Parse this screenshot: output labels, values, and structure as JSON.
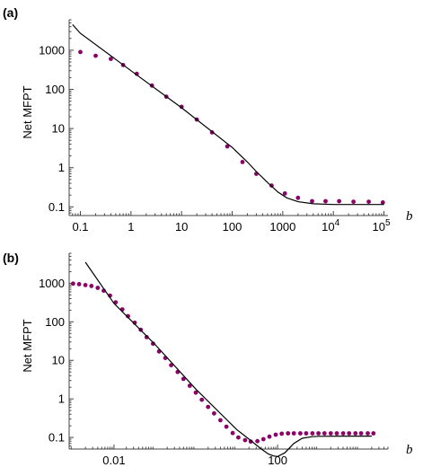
{
  "colors": {
    "points": "#8b0066",
    "curve": "#000000",
    "axis": "#444444"
  },
  "chart_data": [
    {
      "type": "scatter",
      "panel_label": "(a)",
      "title": "",
      "xlabel": "b",
      "ylabel": "Net MFPT",
      "xscale": "log",
      "yscale": "log",
      "xlim": [
        0.06,
        120000
      ],
      "ylim": [
        0.06,
        6000
      ],
      "xticks": [
        {
          "value": 0.1,
          "label": "0.1"
        },
        {
          "value": 1,
          "label": "1"
        },
        {
          "value": 10,
          "label": "10"
        },
        {
          "value": 100,
          "label": "100"
        },
        {
          "value": 1000,
          "label": "1000"
        }
      ],
      "xticks_pow": [
        {
          "value": 10000,
          "base": "10",
          "exp": "4"
        },
        {
          "value": 100000,
          "base": "10",
          "exp": "5"
        }
      ],
      "yticks": [
        {
          "value": 0.1,
          "label": "0.1"
        },
        {
          "value": 1,
          "label": "1"
        },
        {
          "value": 10,
          "label": "10"
        },
        {
          "value": 100,
          "label": "100"
        },
        {
          "value": 1000,
          "label": "1000"
        }
      ],
      "series": [
        {
          "kind": "points",
          "x": [
            0.1,
            0.2,
            0.4,
            0.7,
            1.3,
            2.6,
            5,
            10,
            20,
            40,
            80,
            160,
            300,
            600,
            1100,
            2000,
            3800,
            7000,
            13000,
            25000,
            50000,
            95000
          ],
          "y": [
            900,
            720,
            600,
            420,
            250,
            125,
            65,
            36,
            17,
            8,
            3.5,
            1.4,
            0.7,
            0.35,
            0.22,
            0.17,
            0.14,
            0.14,
            0.14,
            0.135,
            0.135,
            0.13
          ]
        },
        {
          "kind": "line",
          "x": [
            0.07,
            0.1,
            1,
            10,
            100,
            200,
            300,
            500,
            800,
            1200,
            2000,
            4000,
            10000,
            100000
          ],
          "y": [
            4500,
            2700,
            300,
            34,
            3.3,
            1.4,
            0.8,
            0.42,
            0.24,
            0.17,
            0.135,
            0.12,
            0.115,
            0.115
          ]
        }
      ]
    },
    {
      "type": "scatter",
      "panel_label": "(b)",
      "title": "",
      "xlabel": "b",
      "ylabel": "Net MFPT",
      "xscale": "log",
      "yscale": "log",
      "xlim": [
        0.0008,
        50000
      ],
      "ylim": [
        0.05,
        6000
      ],
      "xticks": [
        {
          "value": 0.01,
          "label": "0.01"
        },
        {
          "value": 100,
          "label": "100"
        }
      ],
      "xticks_pow": [],
      "yticks": [
        {
          "value": 0.1,
          "label": "0.1"
        },
        {
          "value": 1,
          "label": "1"
        },
        {
          "value": 10,
          "label": "10"
        },
        {
          "value": 100,
          "label": "100"
        },
        {
          "value": 1000,
          "label": "1000"
        }
      ],
      "series": [
        {
          "kind": "points",
          "x": [
            0.001,
            0.0014,
            0.002,
            0.0028,
            0.004,
            0.0056,
            0.008,
            0.011,
            0.016,
            0.022,
            0.032,
            0.045,
            0.063,
            0.09,
            0.126,
            0.18,
            0.25,
            0.36,
            0.5,
            0.71,
            1,
            1.4,
            2,
            2.8,
            4,
            5.6,
            8,
            11,
            16,
            22,
            32,
            45,
            63,
            90,
            126,
            180,
            250,
            360,
            500,
            710,
            1000,
            1400,
            2000,
            2800,
            4000,
            5600,
            8000,
            11000,
            16000,
            22000
          ],
          "y": [
            980,
            950,
            900,
            850,
            760,
            640,
            480,
            320,
            210,
            140,
            95,
            62,
            40,
            27,
            17,
            11.5,
            7.5,
            5,
            3.3,
            2.2,
            1.45,
            0.95,
            0.62,
            0.42,
            0.28,
            0.19,
            0.13,
            0.1,
            0.085,
            0.078,
            0.08,
            0.09,
            0.105,
            0.118,
            0.125,
            0.128,
            0.128,
            0.128,
            0.128,
            0.128,
            0.128,
            0.128,
            0.128,
            0.128,
            0.128,
            0.128,
            0.128,
            0.128,
            0.128,
            0.128
          ]
        },
        {
          "kind": "line",
          "x": [
            0.002,
            0.01,
            0.1,
            1,
            10,
            20,
            40,
            60,
            80,
            100,
            150,
            250,
            400,
            700,
            1000,
            5000,
            20000
          ],
          "y": [
            3500,
            300,
            26,
            1.8,
            0.16,
            0.09,
            0.05,
            0.037,
            0.033,
            0.032,
            0.04,
            0.07,
            0.095,
            0.105,
            0.107,
            0.108,
            0.108
          ]
        }
      ]
    }
  ]
}
